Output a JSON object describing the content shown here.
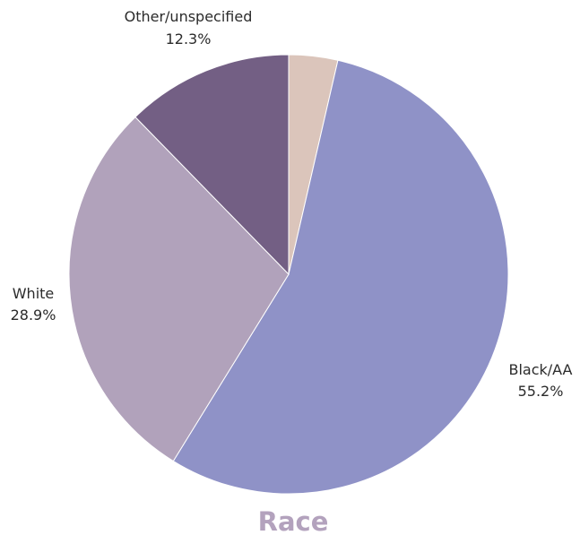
{
  "chart_data": {
    "type": "pie",
    "title": "Race",
    "slices": [
      {
        "label": "Black/AA",
        "percent_label": "55.2%",
        "value": 55.2,
        "color": "#8f92c7"
      },
      {
        "label": "White",
        "percent_label": "28.9%",
        "value": 28.9,
        "color": "#b1a2bb"
      },
      {
        "label": "Other/unspecified",
        "percent_label": "12.3%",
        "value": 12.3,
        "color": "#735f84"
      },
      {
        "label": "",
        "percent_label": "",
        "value": 3.6,
        "color": "#dbc5bb"
      }
    ],
    "legend": "none",
    "labels_placement": "outside"
  }
}
